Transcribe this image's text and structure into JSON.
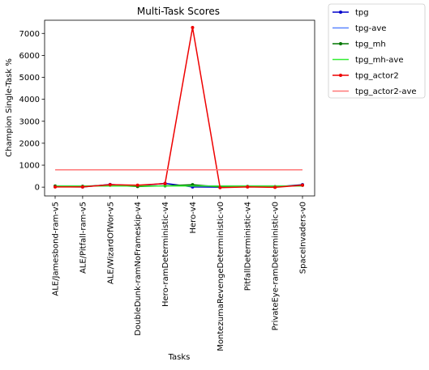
{
  "chart_data": {
    "type": "line",
    "title": "Multi-Task Scores",
    "xlabel": "Tasks",
    "ylabel": "Champion Single-Task %",
    "ylim": [
      -400,
      7600
    ],
    "yticks": [
      0,
      1000,
      2000,
      3000,
      4000,
      5000,
      6000,
      7000
    ],
    "grid": false,
    "legend_placement": "outside-top-right",
    "categories": [
      "ALE/Jamesbond-ram-v5",
      "ALE/Pitfall-ram-v5",
      "ALE/WizardOfWor-v5",
      "DoubleDunk-ramNoFrameskip-v4",
      "Hero-ramDeterministic-v4",
      "Hero-v4",
      "MontezumaRevengeDeterministic-v0",
      "PitfallDeterministic-v4",
      "PrivateEye-ramDeterministic-v0",
      "SpaceInvaders-v0"
    ],
    "series": [
      {
        "name": "tpg",
        "color": "#0000cc",
        "style": "line-marker",
        "values": [
          20,
          10,
          120,
          60,
          170,
          10,
          0,
          20,
          10,
          110
        ]
      },
      {
        "name": "tpg-ave",
        "color": "#5a86ff",
        "style": "line",
        "values": [
          55,
          55,
          55,
          55,
          55,
          55,
          55,
          55,
          55,
          55
        ]
      },
      {
        "name": "tpg_mh",
        "color": "#007700",
        "style": "line-marker",
        "values": [
          50,
          40,
          90,
          30,
          60,
          110,
          10,
          30,
          20,
          90
        ]
      },
      {
        "name": "tpg_mh-ave",
        "color": "#33ee33",
        "style": "line",
        "values": [
          50,
          50,
          50,
          50,
          50,
          50,
          50,
          50,
          50,
          50
        ]
      },
      {
        "name": "tpg_actor2",
        "color": "#ee0000",
        "style": "line-marker",
        "values": [
          10,
          10,
          110,
          90,
          160,
          7270,
          -20,
          10,
          -10,
          90
        ]
      },
      {
        "name": "tpg_actor2-ave",
        "color": "#ff7777",
        "style": "line",
        "values": [
          790,
          790,
          790,
          790,
          790,
          790,
          790,
          790,
          790,
          790
        ]
      }
    ]
  }
}
